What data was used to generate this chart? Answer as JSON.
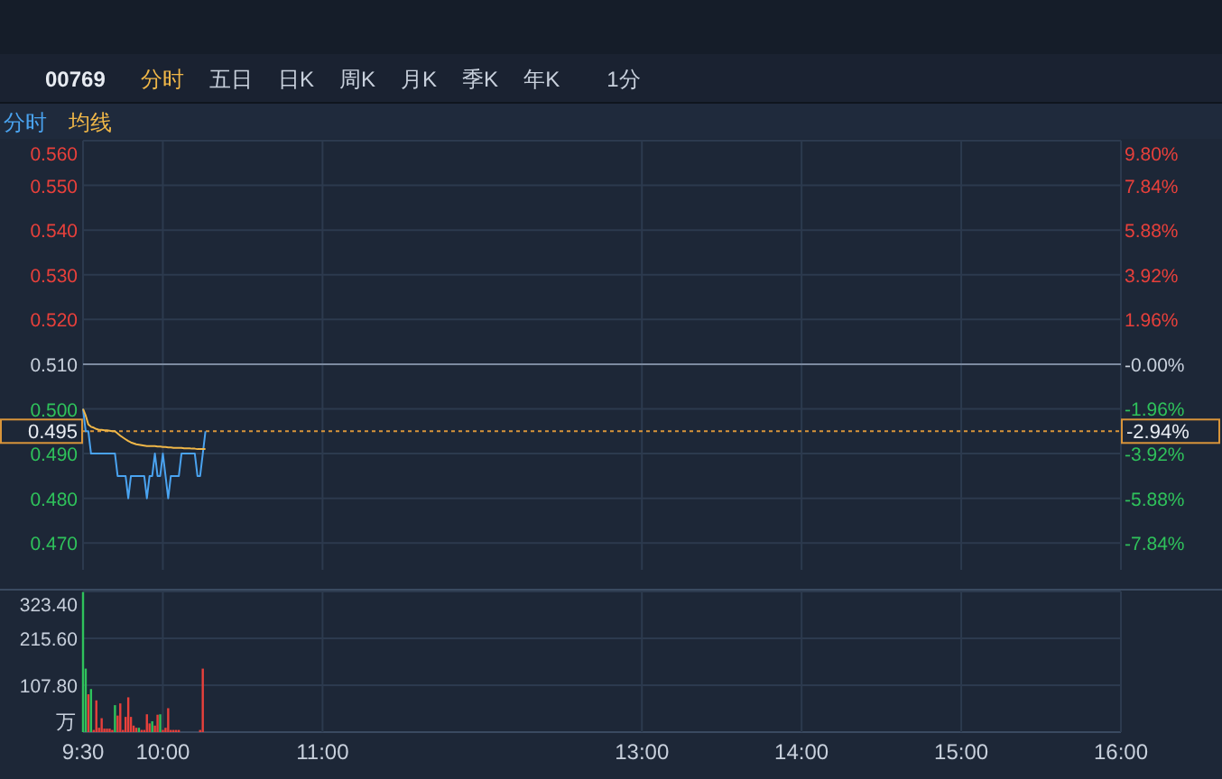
{
  "chart_data": [
    {
      "type": "line",
      "title": "00769",
      "annotations": [
        "分时",
        "五日",
        "日K",
        "周K",
        "月K",
        "季K",
        "年K",
        "1分",
        "-2.94%"
      ],
      "x": [
        9.5,
        9.5167,
        9.5333,
        9.55,
        9.5667,
        9.5833,
        9.6,
        9.6167,
        9.6333,
        9.65,
        9.6667,
        9.6833,
        9.7,
        9.7167,
        9.7333,
        9.75,
        9.7667,
        9.7833,
        9.8,
        9.8167,
        9.8333,
        9.85,
        9.8667,
        9.8833,
        9.9,
        9.9167,
        9.9333,
        9.95,
        9.9667,
        9.9833,
        10,
        10.0167,
        10.0333,
        10.05,
        10.0667,
        10.0833,
        10.1,
        10.1167,
        10.1333,
        10.15,
        10.1667,
        10.1833,
        10.2,
        10.2167,
        10.2333,
        10.25,
        10.2667
      ],
      "series": [
        {
          "name": "分时",
          "color": "#4aa3f0",
          "values": [
            0.5,
            0.495,
            0.495,
            0.49,
            0.49,
            0.49,
            0.49,
            0.49,
            0.49,
            0.49,
            0.49,
            0.49,
            0.49,
            0.485,
            0.485,
            0.485,
            0.485,
            0.48,
            0.485,
            0.485,
            0.485,
            0.485,
            0.485,
            0.485,
            0.48,
            0.485,
            0.485,
            0.49,
            0.485,
            0.485,
            0.49,
            0.485,
            0.48,
            0.485,
            0.485,
            0.485,
            0.485,
            0.49,
            0.49,
            0.49,
            0.49,
            0.49,
            0.49,
            0.485,
            0.485,
            0.49,
            0.495
          ]
        },
        {
          "name": "均线",
          "color": "#f0b748",
          "values": [
            0.5,
            0.4985,
            0.4965,
            0.496,
            0.4958,
            0.4955,
            0.4953,
            0.4953,
            0.4952,
            0.4952,
            0.4951,
            0.495,
            0.495,
            0.4945,
            0.494,
            0.4936,
            0.4932,
            0.4928,
            0.4925,
            0.4923,
            0.4921,
            0.492,
            0.4919,
            0.4918,
            0.4917,
            0.4917,
            0.4917,
            0.4917,
            0.4916,
            0.4916,
            0.4915,
            0.4915,
            0.4914,
            0.4914,
            0.4913,
            0.4913,
            0.4913,
            0.4913,
            0.4912,
            0.4912,
            0.4912,
            0.4911,
            0.4911,
            0.491,
            0.491,
            0.491,
            0.491
          ]
        }
      ],
      "xlim": [
        9.5,
        16
      ],
      "xticks": [
        {
          "value": 9.5,
          "label": null
        },
        {
          "value": 10,
          "label": null
        },
        {
          "value": 11,
          "label": null
        },
        {
          "value": 13,
          "label": null
        },
        {
          "value": 14,
          "label": null
        },
        {
          "value": 15,
          "label": null
        },
        {
          "value": 16,
          "label": null
        }
      ],
      "ylim": [
        0.464,
        0.56
      ],
      "yticks": [
        {
          "value": 0.47,
          "label": "0.470"
        },
        {
          "value": 0.48,
          "label": "0.480"
        },
        {
          "value": 0.49,
          "label": "0.490"
        },
        {
          "value": 0.5,
          "label": "0.500"
        },
        {
          "value": 0.51,
          "label": "0.510"
        },
        {
          "value": 0.52,
          "label": "0.520"
        },
        {
          "value": 0.53,
          "label": "0.530"
        },
        {
          "value": 0.54,
          "label": "0.540"
        },
        {
          "value": 0.55,
          "label": "0.550"
        },
        {
          "value": 0.56,
          "label": "0.560"
        }
      ],
      "y2lim": [
        -9.02,
        9.8
      ],
      "y2ticks": [
        {
          "value": -7.84,
          "label": "-7.84%"
        },
        {
          "value": -5.88,
          "label": "-5.88%"
        },
        {
          "value": -3.92,
          "label": "-3.92%"
        },
        {
          "value": -1.96,
          "label": "-1.96%"
        },
        {
          "value": 0,
          "label": "-0.00%"
        },
        {
          "value": 1.96,
          "label": "1.96%"
        },
        {
          "value": 3.92,
          "label": "3.92%"
        },
        {
          "value": 5.88,
          "label": "5.88%"
        },
        {
          "value": 7.84,
          "label": "7.84%"
        },
        {
          "value": 9.8,
          "label": "9.80%"
        }
      ],
      "ref_lines": [
        {
          "axis": "y",
          "value": 0.51,
          "color": "#7d8ba0"
        },
        {
          "axis": "y",
          "value": 0.495,
          "label": "0.495",
          "color": "#d9953a",
          "line_style": "dotted"
        }
      ],
      "grid": true,
      "legend": "top left",
      "tick_labels": "y"
    },
    {
      "type": "bar",
      "ylabel": "万",
      "x": [
        9.5,
        9.5167,
        9.5333,
        9.55,
        9.5667,
        9.5833,
        9.6,
        9.6167,
        9.6333,
        9.65,
        9.6667,
        9.6833,
        9.7,
        9.7167,
        9.7333,
        9.75,
        9.7667,
        9.7833,
        9.8,
        9.8167,
        9.8333,
        9.85,
        9.8667,
        9.8833,
        9.9,
        9.9167,
        9.9333,
        9.95,
        9.9667,
        9.9833,
        10,
        10.0167,
        10.0333,
        10.05,
        10.0667,
        10.0833,
        10.1,
        10.2333,
        10.25
      ],
      "values": [
        322,
        146,
        87,
        99,
        5,
        73,
        10,
        32,
        8,
        8,
        8,
        5,
        62,
        38,
        66,
        5,
        35,
        80,
        35,
        15,
        10,
        10,
        5,
        5,
        41,
        20,
        25,
        15,
        40,
        41,
        5,
        10,
        55,
        5,
        5,
        5,
        5,
        5,
        146
      ],
      "colors": [
        "#2fc25b",
        "#2fc25b",
        "#e8403b",
        "#2fc25b",
        "#e8403b",
        "#e8403b",
        "#e8403b",
        "#e8403b",
        "#e8403b",
        "#e8403b",
        "#e8403b",
        "#e8403b",
        "#2fc25b",
        "#e8403b",
        "#e8403b",
        "#e8403b",
        "#e8403b",
        "#e8403b",
        "#e8403b",
        "#e8403b",
        "#e8403b",
        "#2fc25b",
        "#e8403b",
        "#e8403b",
        "#e8403b",
        "#e8403b",
        "#2fc25b",
        "#e8403b",
        "#e8403b",
        "#2fc25b",
        "#e8403b",
        "#e8403b",
        "#e8403b",
        "#e8403b",
        "#e8403b",
        "#e8403b",
        "#e8403b",
        "#e8403b",
        "#e8403b"
      ],
      "xlim": [
        9.5,
        16
      ],
      "xticks": [
        {
          "value": 9.5,
          "label": "9:30"
        },
        {
          "value": 10,
          "label": "10:00"
        },
        {
          "value": 11,
          "label": "11:00"
        },
        {
          "value": 13,
          "label": "13:00"
        },
        {
          "value": 14,
          "label": "14:00"
        },
        {
          "value": 15,
          "label": "15:00"
        },
        {
          "value": 16,
          "label": "16:00"
        }
      ],
      "ylim": [
        0,
        323.4
      ],
      "yticks": [
        {
          "value": 107.8,
          "label": "107.80"
        },
        {
          "value": 215.6,
          "label": "215.60"
        },
        {
          "value": 323.4,
          "label": "323.40"
        }
      ],
      "grid": true
    }
  ]
}
